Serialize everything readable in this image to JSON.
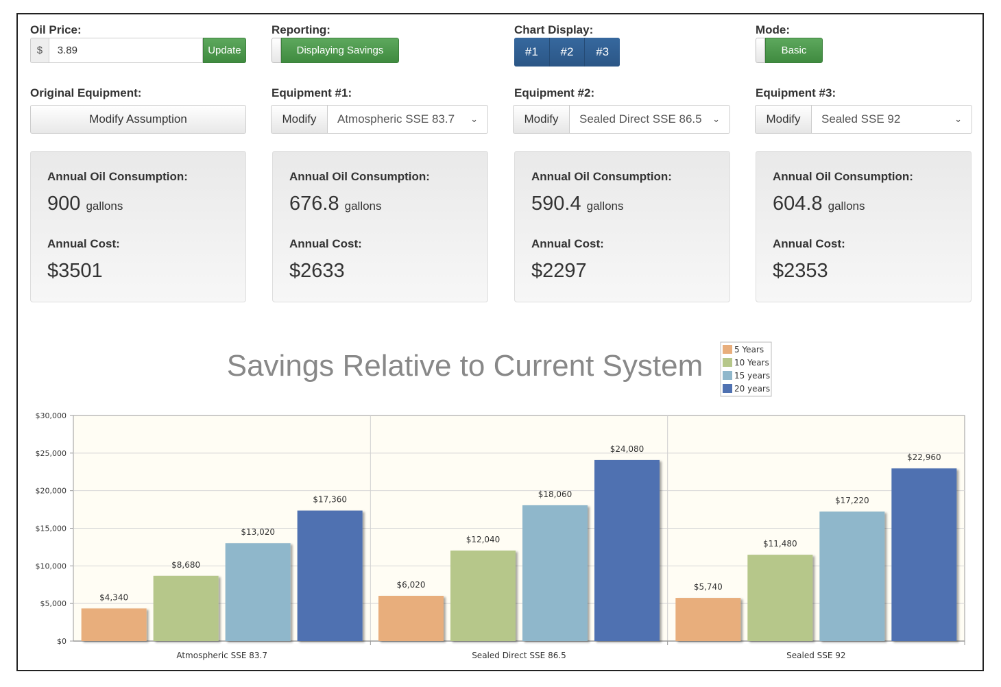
{
  "oil_price": {
    "label": "Oil Price:",
    "currency": "$",
    "value": "3.89",
    "update_label": "Update"
  },
  "reporting": {
    "label": "Reporting:",
    "button_label": "Displaying Savings"
  },
  "chart_display": {
    "label": "Chart Display:",
    "options": [
      "#1",
      "#2",
      "#3"
    ]
  },
  "mode": {
    "label": "Mode:",
    "button_label": "Basic"
  },
  "original": {
    "label": "Original Equipment:",
    "button_label": "Modify Assumption"
  },
  "equipment": [
    {
      "label": "Equipment #1:",
      "modify_label": "Modify",
      "selected": "Atmospheric SSE 83.7"
    },
    {
      "label": "Equipment #2:",
      "modify_label": "Modify",
      "selected": "Sealed Direct SSE 86.5"
    },
    {
      "label": "Equipment #3:",
      "modify_label": "Modify",
      "selected": "Sealed SSE 92"
    }
  ],
  "cards": [
    {
      "consumption_label": "Annual Oil Consumption:",
      "consumption": "900",
      "unit": "gallons",
      "cost_label": "Annual Cost:",
      "cost": "$3501"
    },
    {
      "consumption_label": "Annual Oil Consumption:",
      "consumption": "676.8",
      "unit": "gallons",
      "cost_label": "Annual Cost:",
      "cost": "$2633"
    },
    {
      "consumption_label": "Annual Oil Consumption:",
      "consumption": "590.4",
      "unit": "gallons",
      "cost_label": "Annual Cost:",
      "cost": "$2297"
    },
    {
      "consumption_label": "Annual Oil Consumption:",
      "consumption": "604.8",
      "unit": "gallons",
      "cost_label": "Annual Cost:",
      "cost": "$2353"
    }
  ],
  "colors": {
    "series": [
      "#e8ae7c",
      "#b6c78a",
      "#8fb7cb",
      "#4f71b1"
    ],
    "plot_bg": "#fffdf4",
    "green": "#4a984a",
    "blue": "#2e5a8c"
  },
  "chart_data": {
    "type": "bar",
    "title": "Savings Relative to Current System",
    "categories": [
      "Atmospheric SSE 83.7",
      "Sealed Direct SSE 86.5",
      "Sealed SSE 92"
    ],
    "series": [
      {
        "name": "5 Years",
        "values": [
          4340,
          6020,
          5740
        ],
        "labels": [
          "$4,340",
          "$6,020",
          "$5,740"
        ]
      },
      {
        "name": "10 Years",
        "values": [
          8680,
          12040,
          11480
        ],
        "labels": [
          "$8,680",
          "$12,040",
          "$11,480"
        ]
      },
      {
        "name": "15 years",
        "values": [
          13020,
          18060,
          17220
        ],
        "labels": [
          "$13,020",
          "$18,060",
          "$17,220"
        ]
      },
      {
        "name": "20 years",
        "values": [
          17360,
          24080,
          22960
        ],
        "labels": [
          "$17,360",
          "$24,080",
          "$22,960"
        ]
      }
    ],
    "yticks": [
      "$0",
      "$5,000",
      "$10,000",
      "$15,000",
      "$20,000",
      "$25,000",
      "$30,000"
    ],
    "ylim": [
      0,
      30000
    ],
    "legend_position": "top-right",
    "grid": true
  }
}
